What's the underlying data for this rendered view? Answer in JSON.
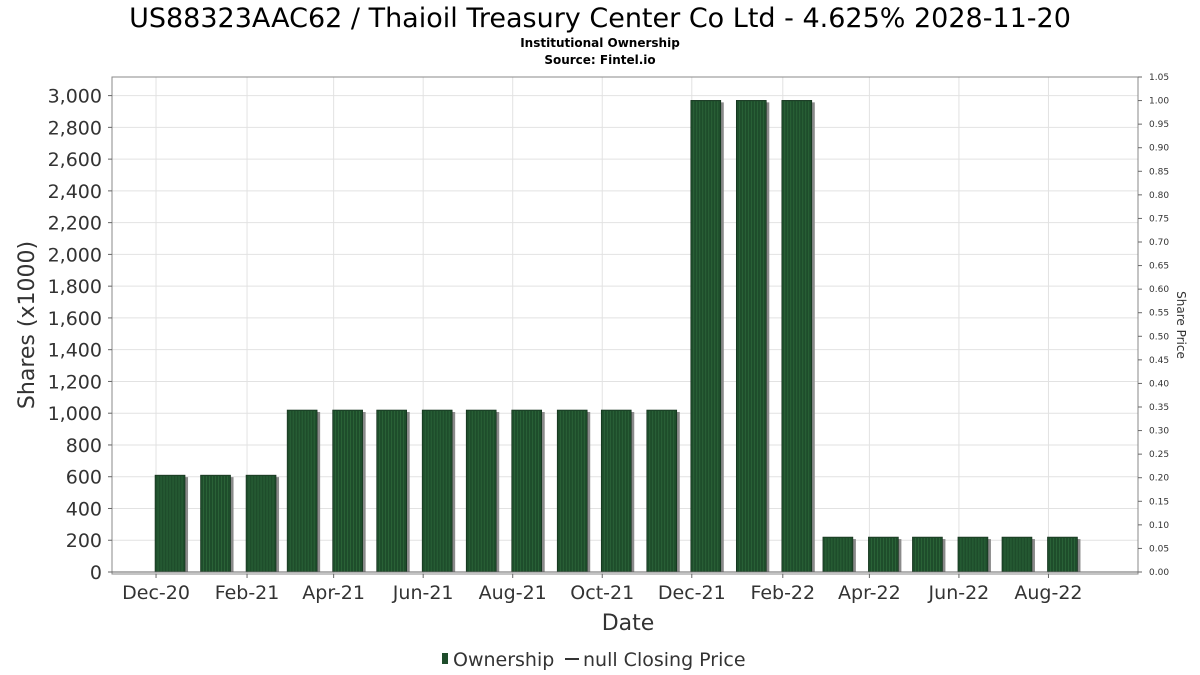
{
  "chart_data": {
    "type": "bar",
    "title": "US88323AAC62 / Thaioil Treasury Center Co Ltd - 4.625% 2028-11-20",
    "subtitle_lines": [
      "Institutional Ownership",
      "Source: Fintel.io"
    ],
    "xlabel": "Date",
    "ylabel": "Shares (x1000)",
    "y2label": "Share Price",
    "ylim": [
      0,
      3100
    ],
    "y_ticks": [
      0,
      200,
      400,
      600,
      800,
      1000,
      1200,
      1400,
      1600,
      1800,
      2000,
      2200,
      2400,
      2600,
      2800,
      3000
    ],
    "y_tick_labels": [
      "0",
      "200",
      "400",
      "600",
      "800",
      "1,000",
      "1,200",
      "1,400",
      "1,600",
      "1,800",
      "2,000",
      "2,200",
      "2,400",
      "2,600",
      "2,800",
      "3,000"
    ],
    "y2lim": [
      0,
      1.05
    ],
    "y2_tick_labels": [
      "0.00",
      "0.05",
      "0.10",
      "0.15",
      "0.20",
      "0.25",
      "0.30",
      "0.35",
      "0.40",
      "0.45",
      "0.50",
      "0.55",
      "0.60",
      "0.65",
      "0.70",
      "0.75",
      "0.80",
      "0.85",
      "0.90",
      "0.95",
      "1.00",
      "1.05"
    ],
    "x_tick_labels": [
      "Dec-20",
      "Feb-21",
      "Apr-21",
      "Jun-21",
      "Aug-21",
      "Oct-21",
      "Dec-21",
      "Feb-22",
      "Apr-22",
      "Jun-22",
      "Aug-22"
    ],
    "dates": [
      "2020-12-01",
      "2021-01-01",
      "2021-02-01",
      "2021-03-01",
      "2021-04-01",
      "2021-05-01",
      "2021-06-01",
      "2021-07-01",
      "2021-08-01",
      "2021-09-01",
      "2021-10-01",
      "2021-11-01",
      "2021-12-01",
      "2022-01-01",
      "2022-02-01",
      "2022-03-01",
      "2022-04-01",
      "2022-05-01",
      "2022-06-01",
      "2022-07-01",
      "2022-08-01"
    ],
    "series": [
      {
        "name": "Ownership",
        "color": "#1e4d2b",
        "values": [
          610,
          610,
          610,
          1020,
          1020,
          1020,
          1020,
          1020,
          1020,
          1020,
          1020,
          1020,
          2970,
          2970,
          2970,
          220,
          220,
          220,
          220,
          220,
          220
        ]
      }
    ],
    "legend": {
      "position": "bottom",
      "entries": [
        {
          "symbol": "bar",
          "label": "Ownership"
        },
        {
          "symbol": "line",
          "label": "null Closing Price"
        }
      ]
    },
    "grid": true
  }
}
